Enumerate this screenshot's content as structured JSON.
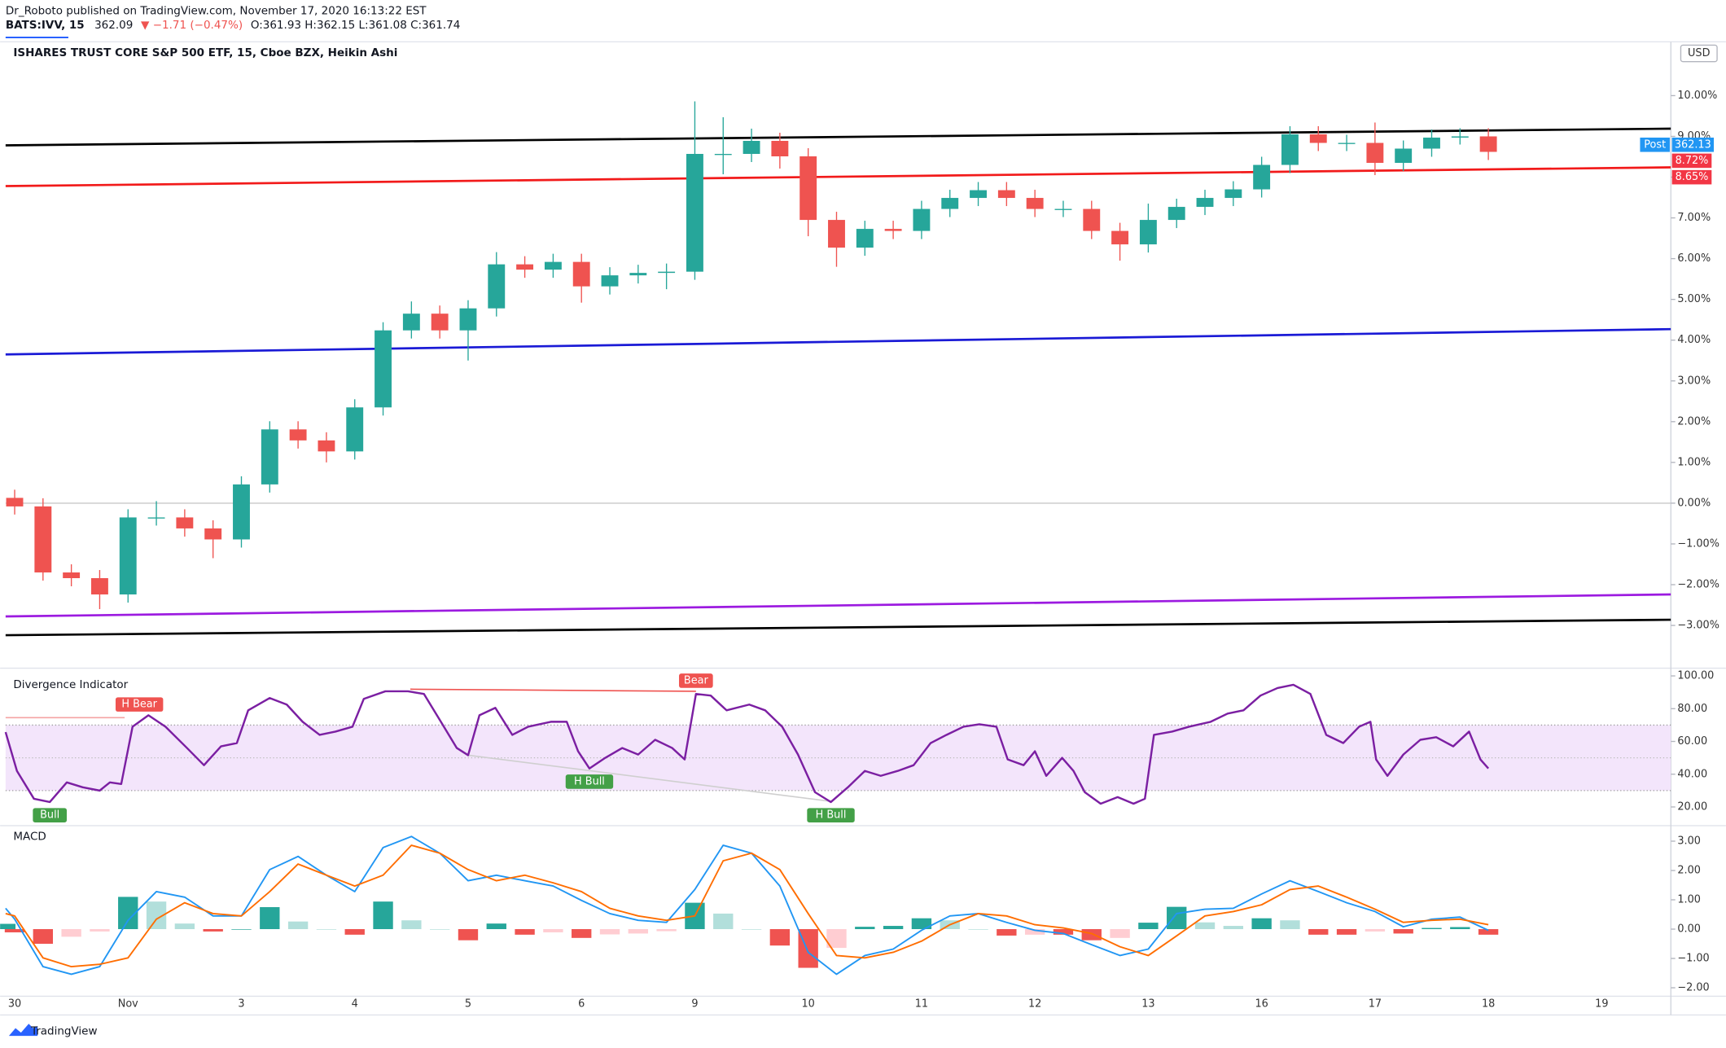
{
  "header": {
    "author_line": "Dr_Roboto published on TradingView.com, November 17, 2020 16:13:22 EST",
    "symbol": "BATS:IVV, 15",
    "price": "362.09",
    "change": "▼ −1.71 (−0.47%)",
    "ohlc": "O:361.93 H:362.15 L:361.08 C:361.74"
  },
  "footer": {
    "brand": "TradingView"
  },
  "chart_data": [
    {
      "type": "candlestick",
      "title": "ISHARES TRUST CORE S&P 500 ETF, 15, Cboe BZX, Heikin Ashi",
      "currency": "USD",
      "x": [
        0,
        0.25,
        0.5,
        0.75,
        1,
        1.25,
        1.5,
        1.75,
        2,
        2.25,
        2.5,
        2.75,
        3,
        3.25,
        3.5,
        3.75,
        4,
        4.25,
        4.5,
        4.75,
        5,
        5.25,
        5.5,
        5.75,
        6,
        6.25,
        6.5,
        6.75,
        7,
        7.25,
        7.5,
        7.75,
        8,
        8.25,
        8.5,
        8.75,
        9,
        9.25,
        9.5,
        9.75,
        10,
        10.25,
        10.5,
        10.75,
        11,
        11.25,
        11.5,
        11.75,
        12,
        12.25,
        12.5,
        12.75,
        13
      ],
      "open": [
        0.13,
        -0.08,
        -1.7,
        -1.84,
        -2.24,
        -0.35,
        -0.35,
        -0.62,
        -0.89,
        0.46,
        1.81,
        1.54,
        1.27,
        2.35,
        4.24,
        4.65,
        4.24,
        4.78,
        5.86,
        5.73,
        5.92,
        5.32,
        5.59,
        5.65,
        5.68,
        8.57,
        8.57,
        8.89,
        8.51,
        6.95,
        6.27,
        6.73,
        6.68,
        7.22,
        7.49,
        7.68,
        7.49,
        7.22,
        7.22,
        6.68,
        6.35,
        6.95,
        7.27,
        7.49,
        7.7,
        8.3,
        9.05,
        8.84,
        8.84,
        8.35,
        8.7,
        8.97,
        9.0
      ],
      "high": [
        0.33,
        0.12,
        -1.5,
        -1.64,
        -0.15,
        0.05,
        -0.15,
        -0.42,
        0.66,
        2.01,
        2.01,
        1.74,
        2.55,
        4.44,
        4.95,
        4.85,
        4.98,
        6.16,
        6.06,
        6.12,
        6.12,
        5.79,
        5.85,
        5.88,
        9.86,
        9.47,
        9.19,
        9.09,
        8.71,
        7.15,
        6.93,
        6.93,
        7.42,
        7.69,
        7.88,
        7.88,
        7.69,
        7.42,
        7.42,
        6.88,
        7.35,
        7.47,
        7.69,
        7.9,
        8.5,
        9.25,
        9.25,
        9.04,
        9.34,
        8.9,
        9.17,
        9.2,
        9.2
      ],
      "low": [
        -0.28,
        -1.9,
        -2.04,
        -2.6,
        -2.44,
        -0.55,
        -0.82,
        -1.35,
        -1.09,
        0.26,
        1.34,
        1.0,
        1.07,
        2.15,
        4.04,
        4.04,
        3.5,
        4.58,
        5.53,
        5.53,
        4.92,
        5.12,
        5.39,
        5.25,
        5.48,
        8.07,
        8.37,
        8.21,
        6.55,
        5.8,
        6.07,
        6.48,
        6.48,
        7.02,
        7.29,
        7.29,
        7.02,
        7.02,
        6.48,
        5.95,
        6.15,
        6.75,
        7.07,
        7.29,
        7.5,
        8.1,
        8.64,
        8.64,
        8.05,
        8.15,
        8.5,
        8.8,
        8.42
      ],
      "close": [
        -0.08,
        -1.7,
        -1.84,
        -2.24,
        -0.35,
        -0.35,
        -0.62,
        -0.89,
        0.46,
        1.81,
        1.54,
        1.27,
        2.35,
        4.24,
        4.65,
        4.24,
        4.78,
        5.86,
        5.73,
        5.92,
        5.32,
        5.59,
        5.65,
        5.68,
        8.57,
        8.57,
        8.89,
        8.51,
        6.95,
        6.27,
        6.73,
        6.68,
        7.22,
        7.49,
        7.68,
        7.49,
        7.22,
        7.22,
        6.68,
        6.35,
        6.95,
        7.27,
        7.49,
        7.7,
        8.3,
        9.05,
        8.84,
        8.84,
        8.35,
        8.7,
        8.97,
        9.0,
        8.62
      ],
      "up_color": "#26a69a",
      "down_color": "#ef5350",
      "xlim": [
        -0.08,
        14.61
      ],
      "ylim": [
        -4.05,
        11.32
      ],
      "yticks": [
        {
          "value": -3,
          "label": "−3.00%"
        },
        {
          "value": -2,
          "label": "−2.00%"
        },
        {
          "value": -1,
          "label": "−1.00%"
        },
        {
          "value": 0,
          "label": "0.00%"
        },
        {
          "value": 1,
          "label": "1.00%"
        },
        {
          "value": 2,
          "label": "2.00%"
        },
        {
          "value": 3,
          "label": "3.00%"
        },
        {
          "value": 4,
          "label": "4.00%"
        },
        {
          "value": 5,
          "label": "5.00%"
        },
        {
          "value": 6,
          "label": "6.00%"
        },
        {
          "value": 7,
          "label": "7.00%"
        },
        {
          "value": 8,
          "label": "8.00%"
        },
        {
          "value": 9,
          "label": "9.00%"
        },
        {
          "value": 10,
          "label": "10.00%"
        }
      ],
      "trend_lines": [
        {
          "from": [
            -0.08,
            8.78
          ],
          "to": [
            14.61,
            9.19
          ],
          "color": "#000000"
        },
        {
          "from": [
            -0.08,
            7.78
          ],
          "to": [
            14.61,
            8.24
          ],
          "color": "#f21a1a"
        },
        {
          "from": [
            -0.08,
            3.65
          ],
          "to": [
            14.61,
            4.27
          ],
          "color": "#1a1ad6"
        },
        {
          "from": [
            -0.08,
            -2.78
          ],
          "to": [
            14.61,
            -2.24
          ],
          "color": "#9c1ae0"
        },
        {
          "from": [
            -0.08,
            -3.24
          ],
          "to": [
            14.61,
            -2.86
          ],
          "color": "#000000"
        }
      ],
      "price_labels": [
        {
          "label": "8.72%",
          "color": "#f23645"
        },
        {
          "label": "8.65%",
          "color": "#f23645"
        }
      ],
      "last_price": {
        "name": "Post",
        "label": "362.13",
        "color": "#2196f3"
      }
    },
    {
      "type": "line",
      "title": "Divergence Indicator",
      "x": [
        -0.08,
        0.02,
        0.17,
        0.31,
        0.46,
        0.6,
        0.75,
        0.84,
        0.94,
        1.04,
        1.18,
        1.33,
        1.52,
        1.67,
        1.82,
        1.96,
        2.06,
        2.25,
        2.4,
        2.54,
        2.69,
        2.83,
        2.98,
        3.08,
        3.27,
        3.47,
        3.61,
        3.76,
        3.9,
        4.0,
        4.1,
        4.24,
        4.39,
        4.53,
        4.73,
        4.87,
        4.97,
        5.07,
        5.21,
        5.36,
        5.5,
        5.65,
        5.8,
        5.91,
        6.01,
        6.14,
        6.28,
        6.48,
        6.62,
        6.77,
        6.91,
        7.06,
        7.2,
        7.35,
        7.5,
        7.64,
        7.79,
        7.93,
        8.08,
        8.22,
        8.37,
        8.51,
        8.66,
        8.76,
        8.9,
        9.0,
        9.1,
        9.24,
        9.34,
        9.44,
        9.58,
        9.73,
        9.87,
        9.97,
        10.05,
        10.21,
        10.36,
        10.55,
        10.7,
        10.84,
        10.99,
        11.14,
        11.28,
        11.43,
        11.57,
        11.72,
        11.86,
        11.96,
        12.01,
        12.11,
        12.25,
        12.4,
        12.54,
        12.69,
        12.83,
        12.93,
        13.0
      ],
      "series": [
        {
          "color": "#7b1fa2",
          "values": [
            65.7,
            42,
            25,
            23,
            35,
            32,
            30,
            35,
            34,
            69,
            76,
            69,
            56,
            45.5,
            57,
            59,
            79,
            86.5,
            82.5,
            72,
            64,
            66,
            69,
            86,
            90.6,
            90.6,
            89,
            72,
            56,
            51.6,
            76,
            80.5,
            64,
            69,
            72,
            72,
            54,
            43.5,
            50,
            56,
            52,
            61,
            56,
            49,
            89,
            88,
            79,
            82.5,
            79,
            69,
            52,
            29,
            23,
            32,
            42,
            39,
            42,
            45.5,
            59,
            64,
            69,
            70.5,
            69,
            49,
            45.5,
            54,
            39,
            50,
            42,
            29,
            22,
            26,
            22,
            25,
            64,
            66,
            69,
            72,
            77,
            79,
            88,
            92.6,
            94.6,
            89,
            64,
            59,
            69,
            72,
            49,
            39,
            52,
            61,
            62.6,
            57,
            66,
            49,
            43.5
          ]
        }
      ],
      "band": [
        30,
        70
      ],
      "band_color": "#f3e5fb",
      "midline": 50,
      "xlim": [
        -0.08,
        14.61
      ],
      "ylim": [
        8.6,
        104.7
      ],
      "yticks": [
        {
          "value": 20,
          "label": "20.00"
        },
        {
          "value": 40,
          "label": "40.00"
        },
        {
          "value": 60,
          "label": "60.00"
        },
        {
          "value": 80,
          "label": "80.00"
        },
        {
          "value": 100,
          "label": "100.00"
        }
      ],
      "annotations": [
        {
          "text": "H Bear",
          "x": 1.1,
          "y": 74.5,
          "position": "above",
          "color": "#ef5350"
        },
        {
          "text": "Bear",
          "x": 6.01,
          "y": 89,
          "position": "above",
          "color": "#ef5350"
        },
        {
          "text": "Bull",
          "x": 0.31,
          "y": 23,
          "position": "below",
          "color": "#43a047"
        },
        {
          "text": "H Bull",
          "x": 5.07,
          "y": 43.5,
          "position": "below",
          "color": "#43a047"
        },
        {
          "text": "H Bull",
          "x": 7.2,
          "y": 23,
          "position": "below",
          "color": "#43a047"
        }
      ],
      "divergence_lines": [
        {
          "from": [
            -0.08,
            74.5
          ],
          "to": [
            0.97,
            74.5
          ],
          "color": "#f5a3a3"
        },
        {
          "from": [
            3.49,
            91.9
          ],
          "to": [
            6.01,
            90.6
          ],
          "color": "#ef5350"
        },
        {
          "from": [
            4.0,
            51.6
          ],
          "to": [
            7.2,
            23.4
          ],
          "color": "#cfcfcf"
        }
      ]
    },
    {
      "type": "macd",
      "title": "MACD",
      "x": [
        -0.08,
        0,
        0.25,
        0.5,
        0.75,
        1,
        1.25,
        1.5,
        1.75,
        2,
        2.25,
        2.5,
        2.75,
        3,
        3.25,
        3.5,
        3.75,
        4,
        4.25,
        4.5,
        4.75,
        5,
        5.25,
        5.5,
        5.75,
        6,
        6.25,
        6.5,
        6.75,
        7,
        7.25,
        7.5,
        7.75,
        8,
        8.25,
        8.5,
        8.75,
        9,
        9.25,
        9.5,
        9.75,
        10,
        10.25,
        10.5,
        10.75,
        11,
        11.25,
        11.5,
        11.75,
        12,
        12.25,
        12.5,
        12.75,
        13
      ],
      "series": [
        {
          "color": "#2196f3",
          "values": [
            0.71,
            0.34,
            -1.28,
            -1.54,
            -1.28,
            0.3,
            1.28,
            1.09,
            0.45,
            0.45,
            2.03,
            2.48,
            1.84,
            1.28,
            2.78,
            3.16,
            2.59,
            1.65,
            1.84,
            1.65,
            1.47,
            0.98,
            0.53,
            0.3,
            0.23,
            1.35,
            2.86,
            2.59,
            1.47,
            -0.79,
            -1.54,
            -0.9,
            -0.68,
            -0.04,
            0.45,
            0.53,
            0.23,
            -0.04,
            -0.15,
            -0.53,
            -0.9,
            -0.68,
            0.53,
            0.68,
            0.71,
            1.2,
            1.65,
            1.28,
            0.9,
            0.6,
            0.08,
            0.34,
            0.41,
            -0.04
          ]
        },
        {
          "color": "#ff6d00",
          "values": [
            0.53,
            0.45,
            -0.98,
            -1.28,
            -1.2,
            -0.98,
            0.34,
            0.9,
            0.53,
            0.45,
            1.28,
            2.22,
            1.84,
            1.47,
            1.84,
            2.86,
            2.59,
            2.03,
            1.65,
            1.84,
            1.58,
            1.28,
            0.71,
            0.45,
            0.3,
            0.45,
            2.33,
            2.59,
            2.03,
            0.53,
            -0.9,
            -0.98,
            -0.79,
            -0.41,
            0.15,
            0.53,
            0.45,
            0.15,
            0.04,
            -0.15,
            -0.6,
            -0.9,
            -0.23,
            0.45,
            0.6,
            0.83,
            1.35,
            1.47,
            1.09,
            0.68,
            0.23,
            0.3,
            0.34,
            0.15
          ]
        }
      ],
      "histogram": [
        0.18,
        -0.11,
        -0.5,
        -0.26,
        -0.08,
        1.1,
        0.94,
        0.19,
        -0.08,
        0,
        0.75,
        0.26,
        0,
        -0.19,
        0.94,
        0.3,
        0,
        -0.38,
        0.19,
        -0.19,
        -0.11,
        -0.3,
        -0.18,
        -0.15,
        -0.07,
        0.9,
        0.53,
        0,
        -0.56,
        -1.32,
        -0.64,
        0.08,
        0.11,
        0.37,
        0.3,
        0,
        -0.22,
        -0.19,
        -0.19,
        -0.38,
        -0.3,
        0.22,
        0.76,
        0.23,
        0.11,
        0.37,
        0.3,
        -0.19,
        -0.19,
        -0.08,
        -0.15,
        0.04,
        0.07,
        -0.19
      ],
      "histogram_colors": {
        "up_rising": "#26a69a",
        "up_falling": "#b2dfdb",
        "down_falling": "#ef5350",
        "down_rising": "#ffcdd2"
      },
      "xlim": [
        -0.08,
        14.61
      ],
      "ylim": [
        -2.29,
        3.53
      ],
      "yticks": [
        {
          "value": 3,
          "label": "3.00"
        },
        {
          "value": 2,
          "label": "2.00"
        },
        {
          "value": 1,
          "label": "1.00"
        },
        {
          "value": 0,
          "label": "0.00"
        },
        {
          "value": -1,
          "label": "−1.00"
        },
        {
          "value": -2,
          "label": "−2.00"
        }
      ],
      "xticks": [
        {
          "value": 0,
          "label": "30"
        },
        {
          "value": 1,
          "label": "Nov"
        },
        {
          "value": 2,
          "label": "3"
        },
        {
          "value": 3,
          "label": "4"
        },
        {
          "value": 4,
          "label": "5"
        },
        {
          "value": 5,
          "label": "6"
        },
        {
          "value": 6,
          "label": "9"
        },
        {
          "value": 7,
          "label": "10"
        },
        {
          "value": 8,
          "label": "11"
        },
        {
          "value": 9,
          "label": "12"
        },
        {
          "value": 10,
          "label": "13"
        },
        {
          "value": 11,
          "label": "16"
        },
        {
          "value": 12,
          "label": "17"
        },
        {
          "value": 13,
          "label": "18"
        },
        {
          "value": 14,
          "label": "19"
        }
      ]
    }
  ]
}
